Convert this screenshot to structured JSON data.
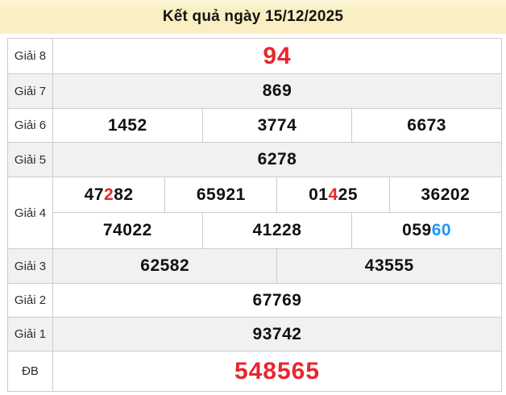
{
  "header": {
    "title": "Kết quả ngày 15/12/2025",
    "background": "#faefc2"
  },
  "colors": {
    "red": "#e8262d",
    "blue": "#2196f3",
    "black": "#111111",
    "stripe": "#f1f1f1",
    "border": "#cccccc"
  },
  "table": {
    "rows": [
      {
        "label": "Giải 8",
        "shade": "white",
        "size": "large",
        "lines": [
          [
            [
              {
                "text": "94",
                "color": "red"
              }
            ]
          ]
        ]
      },
      {
        "label": "Giải 7",
        "shade": "gray",
        "size": "normal",
        "lines": [
          [
            [
              {
                "text": "869"
              }
            ]
          ]
        ]
      },
      {
        "label": "Giải 6",
        "shade": "white",
        "size": "normal",
        "lines": [
          [
            [
              {
                "text": "1452"
              }
            ],
            [
              {
                "text": "3774"
              }
            ],
            [
              {
                "text": "6673"
              }
            ]
          ]
        ]
      },
      {
        "label": "Giải 5",
        "shade": "gray",
        "size": "normal",
        "lines": [
          [
            [
              {
                "text": "6278"
              }
            ]
          ]
        ]
      },
      {
        "label": "Giải 4",
        "shade": "white",
        "size": "normal",
        "lines": [
          [
            [
              {
                "text": "47"
              },
              {
                "text": "2",
                "color": "red"
              },
              {
                "text": "82"
              }
            ],
            [
              {
                "text": "65921"
              }
            ],
            [
              {
                "text": "01"
              },
              {
                "text": "4",
                "color": "red"
              },
              {
                "text": "25"
              }
            ],
            [
              {
                "text": "36202"
              }
            ]
          ],
          [
            [
              {
                "text": "74022"
              }
            ],
            [
              {
                "text": "41228"
              }
            ],
            [
              {
                "text": "059"
              },
              {
                "text": "60",
                "color": "blue"
              }
            ]
          ]
        ]
      },
      {
        "label": "Giải 3",
        "shade": "gray",
        "size": "normal",
        "lines": [
          [
            [
              {
                "text": "62582"
              }
            ],
            [
              {
                "text": "43555"
              }
            ]
          ]
        ]
      },
      {
        "label": "Giải 2",
        "shade": "white",
        "size": "normal",
        "lines": [
          [
            [
              {
                "text": "67769"
              }
            ]
          ]
        ]
      },
      {
        "label": "Giải 1",
        "shade": "gray",
        "size": "normal",
        "lines": [
          [
            [
              {
                "text": "93742"
              }
            ]
          ]
        ]
      },
      {
        "label": "ĐB",
        "shade": "white",
        "size": "large",
        "lines": [
          [
            [
              {
                "text": "548565",
                "color": "red"
              }
            ]
          ]
        ]
      }
    ]
  }
}
